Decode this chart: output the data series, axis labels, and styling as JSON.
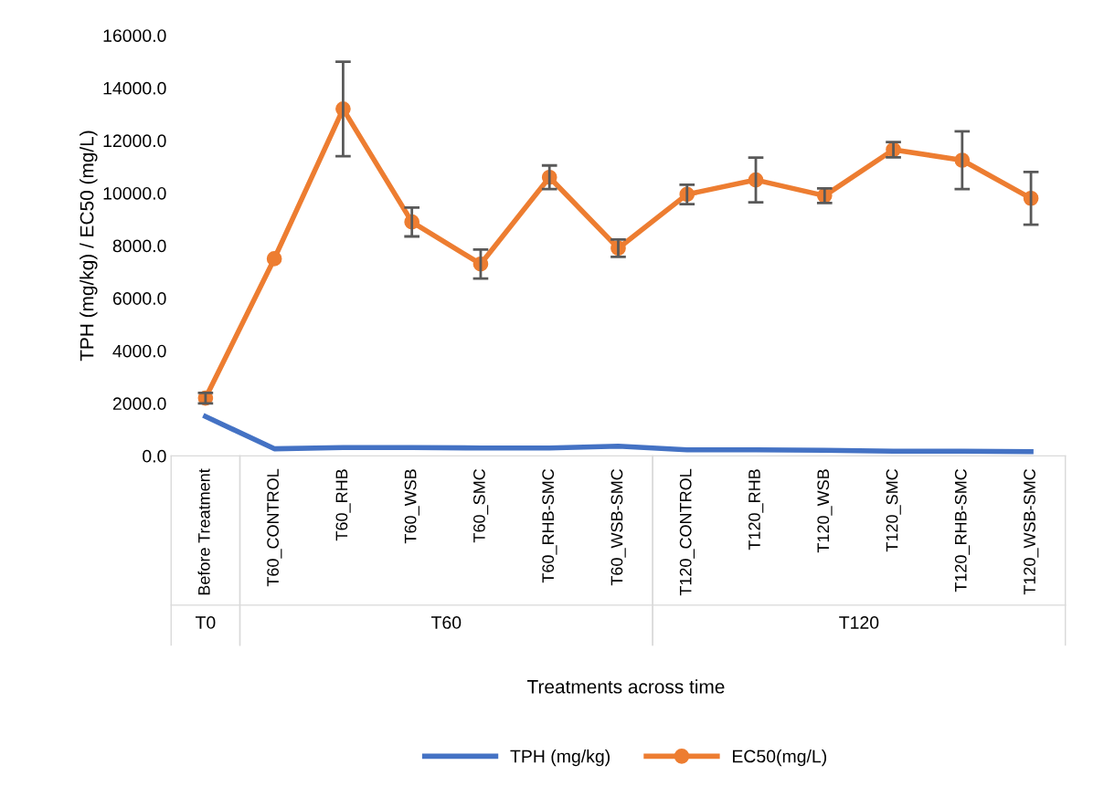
{
  "chart_data": {
    "type": "line",
    "xlabel": "Treatments across time",
    "ylabel": "TPH (mg/kg) / EC50 (mg/L)",
    "categories": [
      "Before Treatment",
      "T60_CONTROL",
      "T60_RHB",
      "T60_WSB",
      "T60_SMC",
      "T60_RHB-SMC",
      "T60_WSB-SMC",
      "T120_CONTROL",
      "T120_RHB",
      "T120_WSB",
      "T120_SMC",
      "T120_RHB-SMC",
      "T120_WSB-SMC"
    ],
    "series": [
      {
        "name": "TPH (mg/kg)",
        "color": "#4472c4",
        "marker": "none",
        "values": [
          1500,
          270,
          320,
          320,
          300,
          300,
          370,
          230,
          230,
          210,
          180,
          180,
          160
        ]
      },
      {
        "name": "EC50(mg/L)",
        "color": "#ed7d31",
        "marker": "circle",
        "values": [
          2200,
          7500,
          13200,
          8900,
          7300,
          10600,
          7900,
          9950,
          10500,
          9900,
          11650,
          11250,
          9800
        ],
        "errors": [
          200,
          null,
          1800,
          550,
          550,
          450,
          330,
          370,
          850,
          280,
          290,
          1100,
          1000
        ]
      }
    ],
    "annotations": [
      "T0",
      "T60",
      "T120"
    ],
    "ylim": [
      0,
      16000
    ],
    "yticks": [
      {
        "value": 0,
        "label": "0.0"
      },
      {
        "value": 2000,
        "label": "2000.0"
      },
      {
        "value": 4000,
        "label": "4000.0"
      },
      {
        "value": 6000,
        "label": "6000.0"
      },
      {
        "value": 8000,
        "label": "8000.0"
      },
      {
        "value": 10000,
        "label": "10000.0"
      },
      {
        "value": 12000,
        "label": "12000.0"
      },
      {
        "value": 14000,
        "label": "14000.0"
      },
      {
        "value": 16000,
        "label": "16000.0"
      }
    ],
    "grid": false,
    "legend": "bottom",
    "line_style": "solid"
  }
}
